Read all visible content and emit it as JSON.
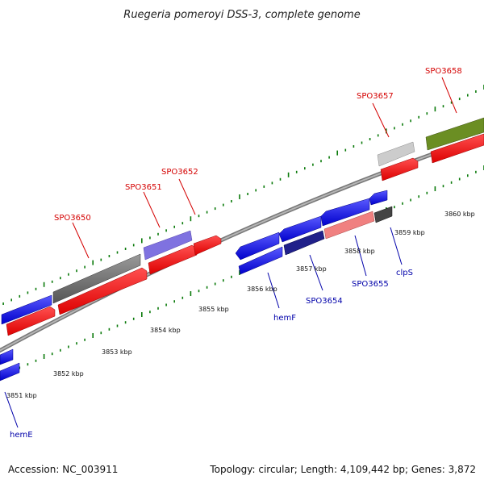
{
  "title": "Ruegeria pomeroyi DSS-3, complete genome",
  "footer": {
    "accession": "Accession: NC_003911",
    "summary": "Topology: circular; Length: 4,109,442 bp; Genes: 3,872"
  },
  "kbp_labels": [
    "3851 kbp",
    "3852 kbp",
    "3853 kbp",
    "3854 kbp",
    "3855 kbp",
    "3856 kbp",
    "3857 kbp",
    "3858 kbp",
    "3859 kbp",
    "3860 kbp"
  ],
  "gene_labels_top": [
    "SPO3650",
    "SPO3651",
    "SPO3652",
    "SPO3657",
    "SPO3658"
  ],
  "gene_labels_bottom": [
    "hemE",
    "hemF",
    "SPO3654",
    "SPO3655",
    "clpS"
  ],
  "colors": {
    "forward_gene": "#ff0000",
    "reverse_gene": "#0000ee",
    "backbone": "#8a8a8a",
    "tick": "#0a7a0a",
    "top_label": "#d40000",
    "bottom_label": "#0000aa"
  }
}
